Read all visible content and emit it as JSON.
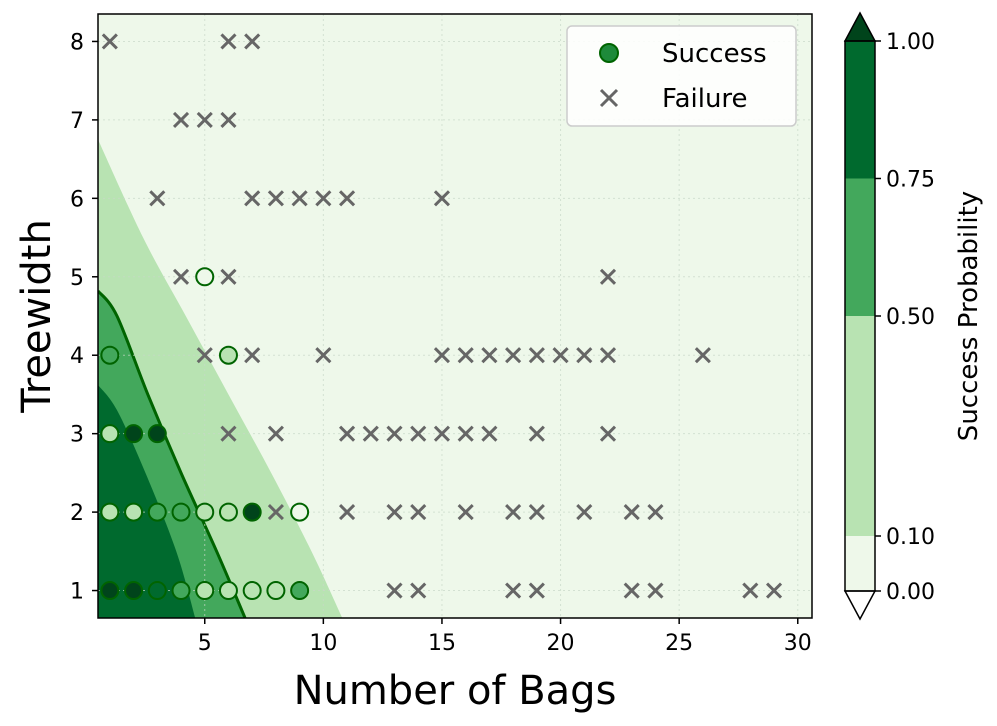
{
  "chart_data": {
    "type": "scatter",
    "xlabel": "Number of Bags",
    "ylabel": "Treewidth",
    "xlim": [
      0.5,
      30.6
    ],
    "ylim": [
      0.65,
      8.35
    ],
    "x_ticks": [
      5,
      10,
      15,
      20,
      25,
      30
    ],
    "y_ticks": [
      1,
      2,
      3,
      4,
      5,
      6,
      7,
      8
    ],
    "grid": true,
    "legend": {
      "position": "top-right",
      "entries": [
        {
          "label": "Success",
          "marker": "circle",
          "color": "#1e8a3a"
        },
        {
          "label": "Failure",
          "marker": "x",
          "color": "#666666"
        }
      ]
    },
    "colorbar": {
      "label": "Success Probability",
      "levels": [
        0.0,
        0.1,
        0.5,
        0.75,
        1.0
      ],
      "tick_labels": [
        "0.00",
        "0.10",
        "0.50",
        "0.75",
        "1.00"
      ],
      "colors": [
        "#eef8ea",
        "#b8e3b2",
        "#43a85c",
        "#006a2e"
      ],
      "extend_top_color": "#00441b",
      "extend_bottom_color": "#ffffff"
    },
    "contours": {
      "levels": [
        0.1,
        0.5,
        0.75
      ],
      "boundary_0.1": [
        [
          10.8,
          0.65
        ],
        [
          9.5,
          1.5
        ],
        [
          7.8,
          2.5
        ],
        [
          6.0,
          3.5
        ],
        [
          4.2,
          4.5
        ],
        [
          2.4,
          5.5
        ],
        [
          0.5,
          6.75
        ]
      ],
      "boundary_0.5": [
        [
          6.7,
          0.65
        ],
        [
          5.5,
          1.5
        ],
        [
          4.0,
          2.5
        ],
        [
          2.6,
          3.5
        ],
        [
          1.3,
          4.5
        ],
        [
          0.5,
          4.82
        ]
      ],
      "boundary_0.75": [
        [
          4.6,
          0.65
        ],
        [
          3.8,
          1.5
        ],
        [
          2.5,
          2.5
        ],
        [
          1.3,
          3.3
        ],
        [
          0.5,
          3.62
        ]
      ],
      "boundary_line_color": "#006400"
    },
    "series": [
      {
        "name": "Success",
        "points": [
          {
            "x": 1,
            "y": 1,
            "p": 0.97
          },
          {
            "x": 2,
            "y": 1,
            "p": 0.95
          },
          {
            "x": 3,
            "y": 1,
            "p": 0.85
          },
          {
            "x": 4,
            "y": 1,
            "p": 0.7
          },
          {
            "x": 5,
            "y": 1,
            "p": 0.4
          },
          {
            "x": 6,
            "y": 1,
            "p": 0.3
          },
          {
            "x": 7,
            "y": 1,
            "p": 0.15
          },
          {
            "x": 8,
            "y": 1,
            "p": 0.15
          },
          {
            "x": 9,
            "y": 1,
            "p": 0.5
          },
          {
            "x": 1,
            "y": 2,
            "p": 0.4
          },
          {
            "x": 2,
            "y": 2,
            "p": 0.4
          },
          {
            "x": 3,
            "y": 2,
            "p": 0.7
          },
          {
            "x": 4,
            "y": 2,
            "p": 0.65
          },
          {
            "x": 5,
            "y": 2,
            "p": 0.4
          },
          {
            "x": 6,
            "y": 2,
            "p": 0.1
          },
          {
            "x": 7,
            "y": 2,
            "p": 0.9
          },
          {
            "x": 9,
            "y": 2,
            "p": 0.05
          },
          {
            "x": 1,
            "y": 3,
            "p": 0.35
          },
          {
            "x": 2,
            "y": 3,
            "p": 0.97
          },
          {
            "x": 3,
            "y": 3,
            "p": 0.97
          },
          {
            "x": 1,
            "y": 4,
            "p": 0.7
          },
          {
            "x": 6,
            "y": 4,
            "p": 0.35
          },
          {
            "x": 5,
            "y": 5,
            "p": 0.05
          }
        ]
      },
      {
        "name": "Failure",
        "points": [
          {
            "x": 13,
            "y": 1
          },
          {
            "x": 14,
            "y": 1
          },
          {
            "x": 18,
            "y": 1
          },
          {
            "x": 19,
            "y": 1
          },
          {
            "x": 23,
            "y": 1
          },
          {
            "x": 24,
            "y": 1
          },
          {
            "x": 28,
            "y": 1
          },
          {
            "x": 29,
            "y": 1
          },
          {
            "x": 8,
            "y": 2
          },
          {
            "x": 11,
            "y": 2
          },
          {
            "x": 13,
            "y": 2
          },
          {
            "x": 14,
            "y": 2
          },
          {
            "x": 16,
            "y": 2
          },
          {
            "x": 18,
            "y": 2
          },
          {
            "x": 19,
            "y": 2
          },
          {
            "x": 21,
            "y": 2
          },
          {
            "x": 23,
            "y": 2
          },
          {
            "x": 24,
            "y": 2
          },
          {
            "x": 6,
            "y": 3
          },
          {
            "x": 8,
            "y": 3
          },
          {
            "x": 11,
            "y": 3
          },
          {
            "x": 12,
            "y": 3
          },
          {
            "x": 13,
            "y": 3
          },
          {
            "x": 14,
            "y": 3
          },
          {
            "x": 15,
            "y": 3
          },
          {
            "x": 16,
            "y": 3
          },
          {
            "x": 17,
            "y": 3
          },
          {
            "x": 19,
            "y": 3
          },
          {
            "x": 22,
            "y": 3
          },
          {
            "x": 5,
            "y": 4
          },
          {
            "x": 7,
            "y": 4
          },
          {
            "x": 10,
            "y": 4
          },
          {
            "x": 15,
            "y": 4
          },
          {
            "x": 16,
            "y": 4
          },
          {
            "x": 17,
            "y": 4
          },
          {
            "x": 18,
            "y": 4
          },
          {
            "x": 19,
            "y": 4
          },
          {
            "x": 20,
            "y": 4
          },
          {
            "x": 21,
            "y": 4
          },
          {
            "x": 22,
            "y": 4
          },
          {
            "x": 26,
            "y": 4
          },
          {
            "x": 4,
            "y": 5
          },
          {
            "x": 6,
            "y": 5
          },
          {
            "x": 22,
            "y": 5
          },
          {
            "x": 3,
            "y": 6
          },
          {
            "x": 7,
            "y": 6
          },
          {
            "x": 8,
            "y": 6
          },
          {
            "x": 9,
            "y": 6
          },
          {
            "x": 10,
            "y": 6
          },
          {
            "x": 11,
            "y": 6
          },
          {
            "x": 15,
            "y": 6
          },
          {
            "x": 4,
            "y": 7
          },
          {
            "x": 5,
            "y": 7
          },
          {
            "x": 6,
            "y": 7
          },
          {
            "x": 1,
            "y": 8
          },
          {
            "x": 6,
            "y": 8
          },
          {
            "x": 7,
            "y": 8
          }
        ]
      }
    ]
  }
}
